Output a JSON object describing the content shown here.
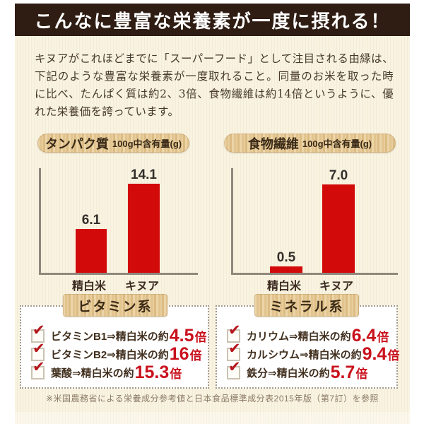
{
  "banner": {
    "title": "こんなに豊富な栄養素が一度に摂れる！"
  },
  "intro": {
    "text": "キヌアがこれほどまでに「スーパーフード」として注目される由縁は、下記のような豊富な栄養素が一度取れること。同量のお米を取った時に比べ、たんぱく質は約2、3倍、食物繊維は約14倍というように、優れた栄養価を誇っています。"
  },
  "chart_data": [
    {
      "type": "bar",
      "title": "タンパク質",
      "subtitle": "100g中含有量(g)",
      "categories": [
        "精白米",
        "キヌア"
      ],
      "values": [
        6.1,
        14.1
      ],
      "values_display": [
        "6.1",
        "14.1"
      ],
      "ylim": [
        0,
        14.5
      ],
      "bar_color": "#d20a0a",
      "grid": "off",
      "legend": "none"
    },
    {
      "type": "bar",
      "title": "食物繊維",
      "subtitle": "100g中含有量(g)",
      "categories": [
        "精白米",
        "キヌア"
      ],
      "values": [
        0.5,
        7.0
      ],
      "values_display": [
        "0.5",
        "7.0"
      ],
      "ylim": [
        0,
        8.3
      ],
      "bar_color": "#d20a0a",
      "grid": "off",
      "legend": "none"
    }
  ],
  "boxes": [
    {
      "title": "ビタミン系",
      "items": [
        {
          "label": "ビタミンB1⇒精白米の約",
          "value": "4.5",
          "suffix": "倍"
        },
        {
          "label": "ビタミンB2⇒精白米の約",
          "value": "16",
          "suffix": "倍"
        },
        {
          "label": "葉酸⇒精白米の約",
          "value": "15.3",
          "suffix": "倍"
        }
      ]
    },
    {
      "title": "ミネラル系",
      "items": [
        {
          "label": "カリウム⇒精白米の約",
          "value": "6.4",
          "suffix": "倍"
        },
        {
          "label": "カルシウム⇒精白米の約",
          "value": "9.4",
          "suffix": "倍"
        },
        {
          "label": "鉄分⇒精白米の約",
          "value": "5.7",
          "suffix": "倍"
        }
      ]
    }
  ],
  "footnote": {
    "text": "※米国農務省による栄養成分参考値と日本食品標準成分表2015年版（第7訂）を参照"
  },
  "icons": {
    "check": "✔"
  },
  "colors": {
    "banner_bg": "#2f1d13",
    "cream_bg": "#f8f1de",
    "bar_red": "#d20a0a",
    "number_red": "#c9111c",
    "wood": "#e3c693"
  }
}
